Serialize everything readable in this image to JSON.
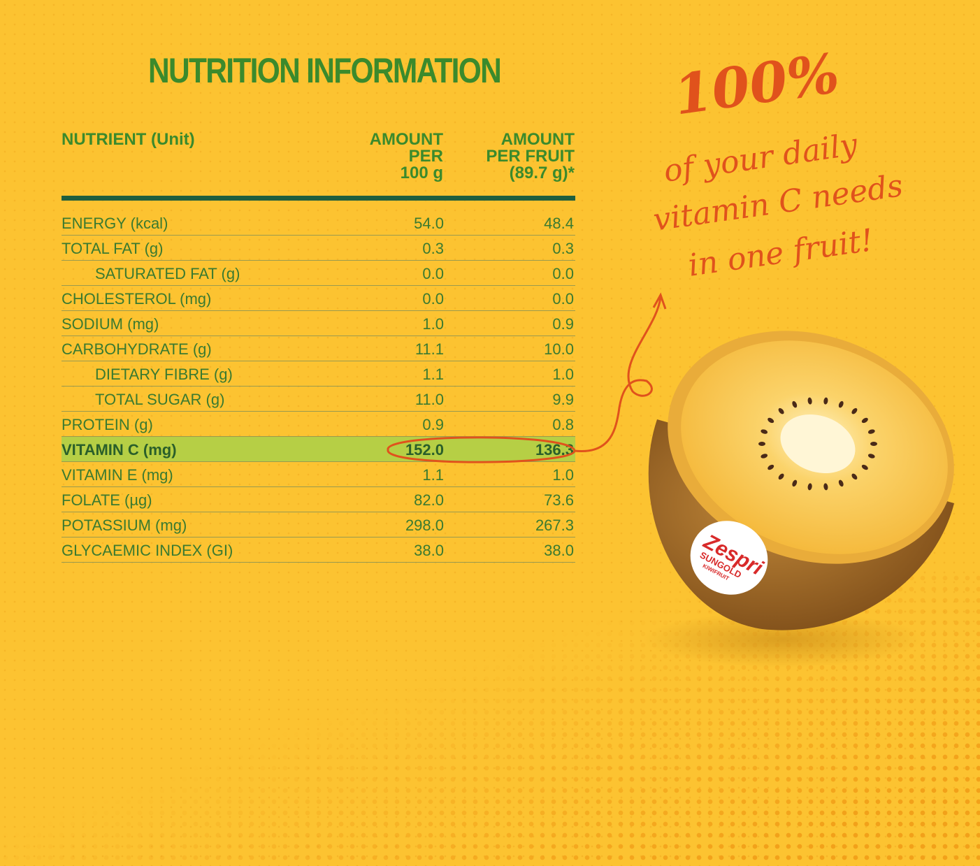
{
  "title": "NUTRITION INFORMATION",
  "headers": {
    "nutrient": "NUTRIENT (Unit)",
    "per100": [
      "AMOUNT",
      "PER",
      "100 g"
    ],
    "perFruit": [
      "AMOUNT",
      "PER FRUIT",
      "(89.7 g)*"
    ]
  },
  "rows": [
    {
      "name": "ENERGY (kcal)",
      "per100": "54.0",
      "perFruit": "48.4",
      "indent": false
    },
    {
      "name": "TOTAL FAT (g)",
      "per100": "0.3",
      "perFruit": "0.3",
      "indent": false
    },
    {
      "name": "SATURATED FAT (g)",
      "per100": "0.0",
      "perFruit": "0.0",
      "indent": true
    },
    {
      "name": "CHOLESTEROL (mg)",
      "per100": "0.0",
      "perFruit": "0.0",
      "indent": false
    },
    {
      "name": "SODIUM (mg)",
      "per100": "1.0",
      "perFruit": "0.9",
      "indent": false
    },
    {
      "name": "CARBOHYDRATE (g)",
      "per100": "11.1",
      "perFruit": "10.0",
      "indent": false
    },
    {
      "name": "DIETARY FIBRE (g)",
      "per100": "1.1",
      "perFruit": "1.0",
      "indent": true
    },
    {
      "name": "TOTAL SUGAR (g)",
      "per100": "11.0",
      "perFruit": "9.9",
      "indent": true
    },
    {
      "name": "PROTEIN (g)",
      "per100": "0.9",
      "perFruit": "0.8",
      "indent": false
    },
    {
      "name": "VITAMIN C (mg)",
      "per100": "152.0",
      "perFruit": "136.3",
      "indent": false,
      "highlight": true
    },
    {
      "name": "VITAMIN E (mg)",
      "per100": "1.1",
      "perFruit": "1.0",
      "indent": false
    },
    {
      "name": "FOLATE (µg)",
      "per100": "82.0",
      "perFruit": "73.6",
      "indent": false
    },
    {
      "name": "POTASSIUM (mg)",
      "per100": "298.0",
      "perFruit": "267.3",
      "indent": false
    },
    {
      "name": "GLYCAEMIC INDEX (GI)",
      "per100": "38.0",
      "perFruit": "38.0",
      "indent": false
    }
  ],
  "callout": {
    "big": "100%",
    "lines": [
      "of your daily",
      "vitamin C needs",
      "in one fruit!"
    ]
  },
  "logo": {
    "brand": "Zespri",
    "product": "SUNGOLD",
    "sub": "KIWIFRUIT"
  },
  "colors": {
    "background": "#fcc331",
    "green": "#3b8a2c",
    "rule": "#1e5e3e",
    "highlight": "#b6cf45",
    "accent": "#e0521c"
  }
}
